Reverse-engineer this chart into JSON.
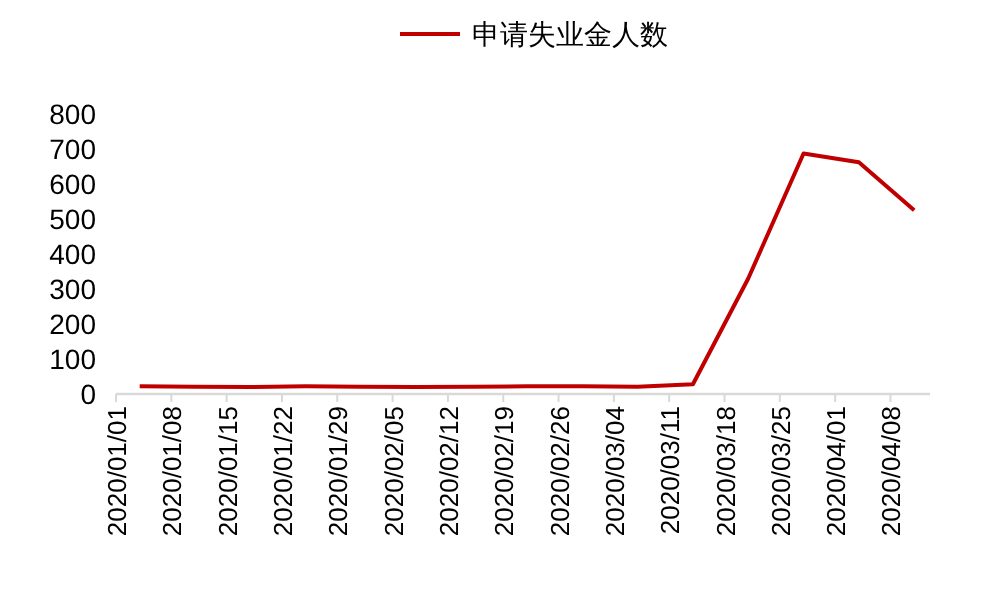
{
  "chart_data": {
    "type": "line",
    "legend": "top",
    "marker": "none",
    "line_style": "solid",
    "grid": false,
    "x": [
      "2020-01-04",
      "2020-01-11",
      "2020-01-18",
      "2020-01-25",
      "2020-02-01",
      "2020-02-08",
      "2020-02-15",
      "2020-02-22",
      "2020-02-29",
      "2020-03-07",
      "2020-03-14",
      "2020-03-21",
      "2020-03-28",
      "2020-04-04",
      "2020-04-11"
    ],
    "series": [
      {
        "name": "申请失业金人数",
        "color": "#c00000",
        "values": [
          22,
          21,
          20,
          22,
          21,
          20,
          21,
          22,
          22,
          21,
          28,
          330,
          687,
          662,
          525
        ]
      }
    ],
    "xlim": [
      "2020-01-01",
      "2020-04-13"
    ],
    "xticks": [
      {
        "value": "2020-01-01",
        "label": "2020/01/01"
      },
      {
        "value": "2020-01-08",
        "label": "2020/01/08"
      },
      {
        "value": "2020-01-15",
        "label": "2020/01/15"
      },
      {
        "value": "2020-01-22",
        "label": "2020/01/22"
      },
      {
        "value": "2020-01-29",
        "label": "2020/01/29"
      },
      {
        "value": "2020-02-05",
        "label": "2020/02/05"
      },
      {
        "value": "2020-02-12",
        "label": "2020/02/12"
      },
      {
        "value": "2020-02-19",
        "label": "2020/02/19"
      },
      {
        "value": "2020-02-26",
        "label": "2020/02/26"
      },
      {
        "value": "2020-03-04",
        "label": "2020/03/04"
      },
      {
        "value": "2020-03-11",
        "label": "2020/03/11"
      },
      {
        "value": "2020-03-18",
        "label": "2020/03/18"
      },
      {
        "value": "2020-03-25",
        "label": "2020/03/25"
      },
      {
        "value": "2020-04-01",
        "label": "2020/04/01"
      },
      {
        "value": "2020-04-08",
        "label": "2020/04/08"
      }
    ],
    "ylim": [
      0,
      800
    ],
    "yticks": [
      0,
      100,
      200,
      300,
      400,
      500,
      600,
      700,
      800
    ]
  }
}
